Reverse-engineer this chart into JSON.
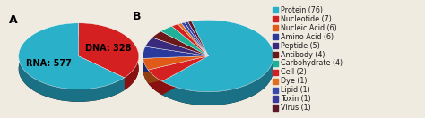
{
  "pie_a_labels": [
    "DNA: 328",
    "RNA: 577"
  ],
  "pie_a_values": [
    328,
    577
  ],
  "pie_a_colors": [
    "#d42020",
    "#2ab0c8"
  ],
  "pie_a_dark": [
    "#8a1010",
    "#1a7085"
  ],
  "pie_b_labels": [
    "Protein (76)",
    "Nucleotide (7)",
    "Nucleic Acid (6)",
    "Amino Acid (6)",
    "Peptide (5)",
    "Antibody (4)",
    "Carbohydrate (4)",
    "Cell (2)",
    "Dye (1)",
    "Lipid (1)",
    "Toxin (1)",
    "Virus (1)"
  ],
  "pie_b_values": [
    76,
    7,
    6,
    6,
    5,
    4,
    4,
    2,
    1,
    1,
    1,
    1
  ],
  "pie_b_colors": [
    "#2ab0c8",
    "#d42020",
    "#e05a18",
    "#2a3a9c",
    "#3a2a7c",
    "#6b1818",
    "#20b098",
    "#d42020",
    "#e07020",
    "#3a4aac",
    "#3a3a9c",
    "#5a1828"
  ],
  "pie_b_dark": [
    "#1a7085",
    "#8a1010",
    "#904010",
    "#1a2a6c",
    "#2a1a5c",
    "#4a0808",
    "#107060",
    "#8a1010",
    "#904010",
    "#2a3a7c",
    "#2a2a6c",
    "#3a0818"
  ],
  "label_a": "A",
  "label_b": "B",
  "label_fontsize": 9,
  "pie_a_text_fontsize": 7,
  "legend_fontsize": 5.8,
  "background_color": "#f0ebe0"
}
